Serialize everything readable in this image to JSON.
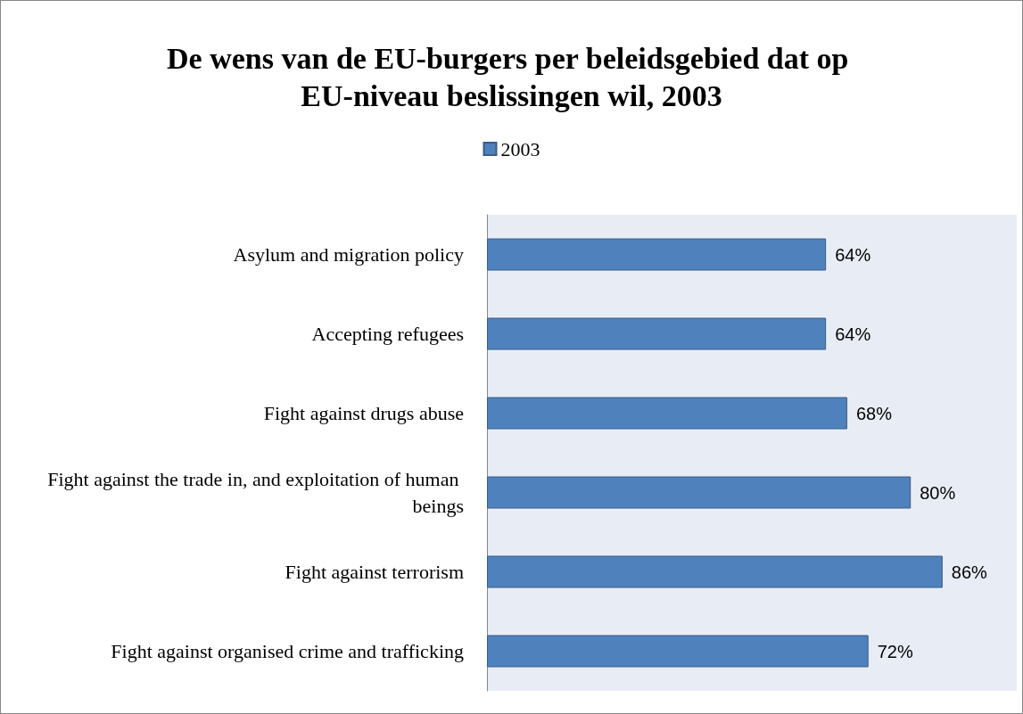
{
  "chart_data": {
    "type": "bar",
    "orientation": "horizontal",
    "title": "De wens van de EU-burgers per beleidsgebied dat op EU-niveau beslissingen wil, 2003",
    "categories": [
      "Asylum and migration policy",
      "Accepting refugees",
      "Fight against drugs abuse",
      "Fight against the trade in, and exploitation of human beings",
      "Fight against terrorism",
      "Fight against organised crime and trafficking"
    ],
    "series": [
      {
        "name": "2003",
        "color": "#4f81bd",
        "values": [
          64,
          64,
          68,
          80,
          86,
          72
        ],
        "value_labels": [
          "64%",
          "64%",
          "68%",
          "80%",
          "86%",
          "72%"
        ]
      }
    ],
    "grid": false,
    "legend": "top"
  }
}
